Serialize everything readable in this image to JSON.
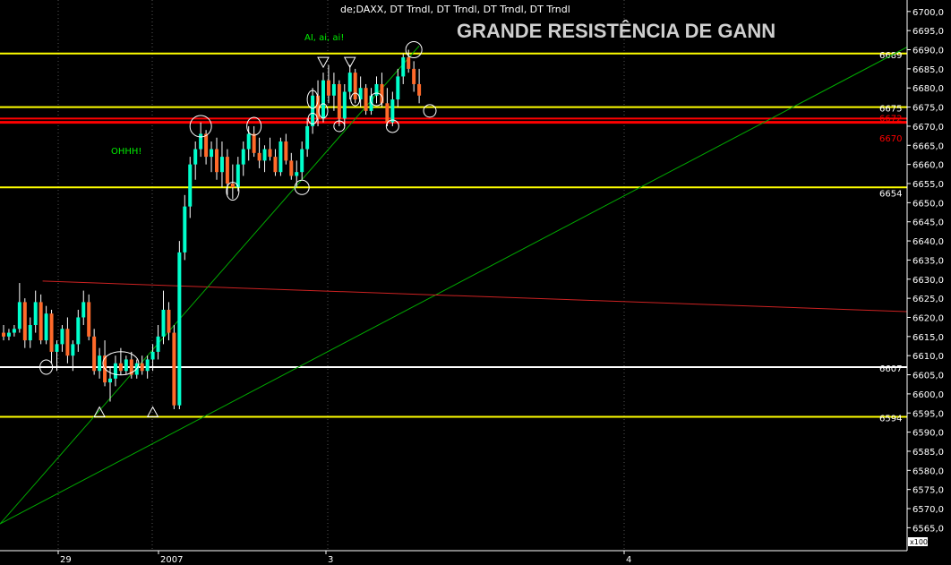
{
  "chart_data": {
    "type": "candlestick",
    "header": "de;DAXX, DT Trndl, DT Trndl, DT Trndl, DT Trndl",
    "headline": "GRANDE RESISTÊNCIA DE GANN",
    "zoom_label": "x100",
    "ylim": [
      6559,
      6703
    ],
    "y_ticks": [
      "6700,0",
      "6695,0",
      "6690,0",
      "6685,0",
      "6680,0",
      "6675,0",
      "6670,0",
      "6665,0",
      "6660,0",
      "6655,0",
      "6650,0",
      "6645,0",
      "6640,0",
      "6635,0",
      "6630,0",
      "6625,0",
      "6620,0",
      "6615,0",
      "6610,0",
      "6605,0",
      "6600,0",
      "6595,0",
      "6590,0",
      "6585,0",
      "6580,0",
      "6575,0",
      "6570,0",
      "6565,0"
    ],
    "x_labels": [
      "29",
      "2007",
      "3",
      "4"
    ],
    "levels": [
      {
        "value": 6689,
        "label": "6689",
        "color": "#ffff00"
      },
      {
        "value": 6675,
        "label": "6675",
        "color": "#ffff00"
      },
      {
        "value": 6672,
        "label": "6672",
        "color": "#ff0000"
      },
      {
        "value": 6670,
        "label": "6670",
        "color": "#ff0000"
      },
      {
        "value": 6654,
        "label": "6654",
        "color": "#ffff00"
      },
      {
        "value": 6607,
        "label": "6607",
        "color": "#ffffff"
      },
      {
        "value": 6594,
        "label": "6594",
        "color": "#ffff00"
      }
    ],
    "annotations": [
      {
        "text": "OHHH!",
        "color": "#00ee00"
      },
      {
        "text": "AI, ai, ai!",
        "color": "#00ee00"
      }
    ],
    "colors": {
      "up": "#00ffcc",
      "down": "#ff6a2a",
      "wick": "#ffffff",
      "background": "#000000",
      "gridline": "#333333"
    },
    "trendlines": [
      {
        "name": "support-trendline",
        "color": "#00aa00",
        "from": [
          0,
          6566
        ],
        "to": [
          170,
          6691
        ]
      },
      {
        "name": "descending-trendline",
        "color": "#cc2222",
        "from": [
          8,
          6629.5
        ],
        "to": [
          170,
          6621.5
        ]
      }
    ],
    "candles_ohlc": [
      [
        6616,
        6618,
        6614,
        6615
      ],
      [
        6615,
        6617,
        6614,
        6616
      ],
      [
        6616,
        6618,
        6615,
        6617
      ],
      [
        6617,
        6629,
        6616,
        6624
      ],
      [
        6624,
        6625,
        6612,
        6614
      ],
      [
        6614,
        6620,
        6612,
        6618
      ],
      [
        6618,
        6627,
        6616,
        6624
      ],
      [
        6624,
        6626,
        6613,
        6614
      ],
      [
        6614,
        6623,
        6613,
        6621
      ],
      [
        6621,
        6622,
        6608,
        6611
      ],
      [
        6611,
        6614,
        6606,
        6613
      ],
      [
        6613,
        6618,
        6611,
        6617
      ],
      [
        6617,
        6620,
        6608,
        6610
      ],
      [
        6610,
        6614,
        6606,
        6613
      ],
      [
        6613,
        6622,
        6611,
        6620
      ],
      [
        6620,
        6627,
        6618,
        6624
      ],
      [
        6624,
        6626,
        6614,
        6615
      ],
      [
        6615,
        6617,
        6605,
        6606
      ],
      [
        6606,
        6612,
        6604,
        6610
      ],
      [
        6610,
        6614,
        6602,
        6603
      ],
      [
        6603,
        6607,
        6598,
        6604
      ],
      [
        6604,
        6610,
        6602,
        6608
      ],
      [
        6608,
        6612,
        6605,
        6606
      ],
      [
        6606,
        6610,
        6605,
        6609
      ],
      [
        6609,
        6611,
        6604,
        6605
      ],
      [
        6605,
        6609,
        6604,
        6608
      ],
      [
        6608,
        6610,
        6605,
        6606
      ],
      [
        6606,
        6610,
        6604,
        6609
      ],
      [
        6609,
        6613,
        6606,
        6611
      ],
      [
        6611,
        6618,
        6609,
        6615
      ],
      [
        6615,
        6627,
        6613,
        6622
      ],
      [
        6622,
        6624,
        6614,
        6616
      ],
      [
        6616,
        6618,
        6596,
        6597
      ],
      [
        6597,
        6640,
        6596,
        6637
      ],
      [
        6637,
        6652,
        6635,
        6649
      ],
      [
        6649,
        6662,
        6646,
        6660
      ],
      [
        6660,
        6666,
        6656,
        6664
      ],
      [
        6664,
        6671,
        6662,
        6668
      ],
      [
        6668,
        6669,
        6660,
        6662
      ],
      [
        6662,
        6666,
        6658,
        6664
      ],
      [
        6664,
        6667,
        6656,
        6658
      ],
      [
        6658,
        6666,
        6654,
        6662
      ],
      [
        6662,
        6664,
        6652,
        6655
      ],
      [
        6655,
        6660,
        6651,
        6654
      ],
      [
        6654,
        6662,
        6653,
        6660
      ],
      [
        6660,
        6666,
        6657,
        6664
      ],
      [
        6664,
        6670,
        6661,
        6668
      ],
      [
        6668,
        6670,
        6662,
        6663
      ],
      [
        6663,
        6667,
        6659,
        6661
      ],
      [
        6661,
        6665,
        6658,
        6664
      ],
      [
        6664,
        6667,
        6661,
        6662
      ],
      [
        6662,
        6664,
        6657,
        6658
      ],
      [
        6658,
        6667,
        6657,
        6666
      ],
      [
        6666,
        6668,
        6660,
        6661
      ],
      [
        6661,
        6663,
        6656,
        6657
      ],
      [
        6657,
        6661,
        6654,
        6658
      ],
      [
        6658,
        6666,
        6656,
        6664
      ],
      [
        6664,
        6672,
        6662,
        6670
      ],
      [
        6670,
        6680,
        6668,
        6678
      ],
      [
        6678,
        6682,
        6670,
        6672
      ],
      [
        6672,
        6684,
        6671,
        6682
      ],
      [
        6682,
        6686,
        6676,
        6678
      ],
      [
        6678,
        6684,
        6674,
        6681
      ],
      [
        6681,
        6682,
        6670,
        6672
      ],
      [
        6672,
        6681,
        6670,
        6679
      ],
      [
        6679,
        6686,
        6677,
        6684
      ],
      [
        6684,
        6685,
        6676,
        6677
      ],
      [
        6677,
        6683,
        6675,
        6680
      ],
      [
        6680,
        6681,
        6673,
        6674
      ],
      [
        6674,
        6680,
        6673,
        6678
      ],
      [
        6678,
        6683,
        6676,
        6681
      ],
      [
        6681,
        6684,
        6675,
        6676
      ],
      [
        6676,
        6680,
        6670,
        6671
      ],
      [
        6671,
        6679,
        6670,
        6677
      ],
      [
        6677,
        6685,
        6675,
        6683
      ],
      [
        6683,
        6689,
        6681,
        6688
      ],
      [
        6688,
        6690,
        6684,
        6685
      ],
      [
        6685,
        6687,
        6679,
        6681
      ],
      [
        6681,
        6685,
        6676,
        6678
      ]
    ]
  }
}
